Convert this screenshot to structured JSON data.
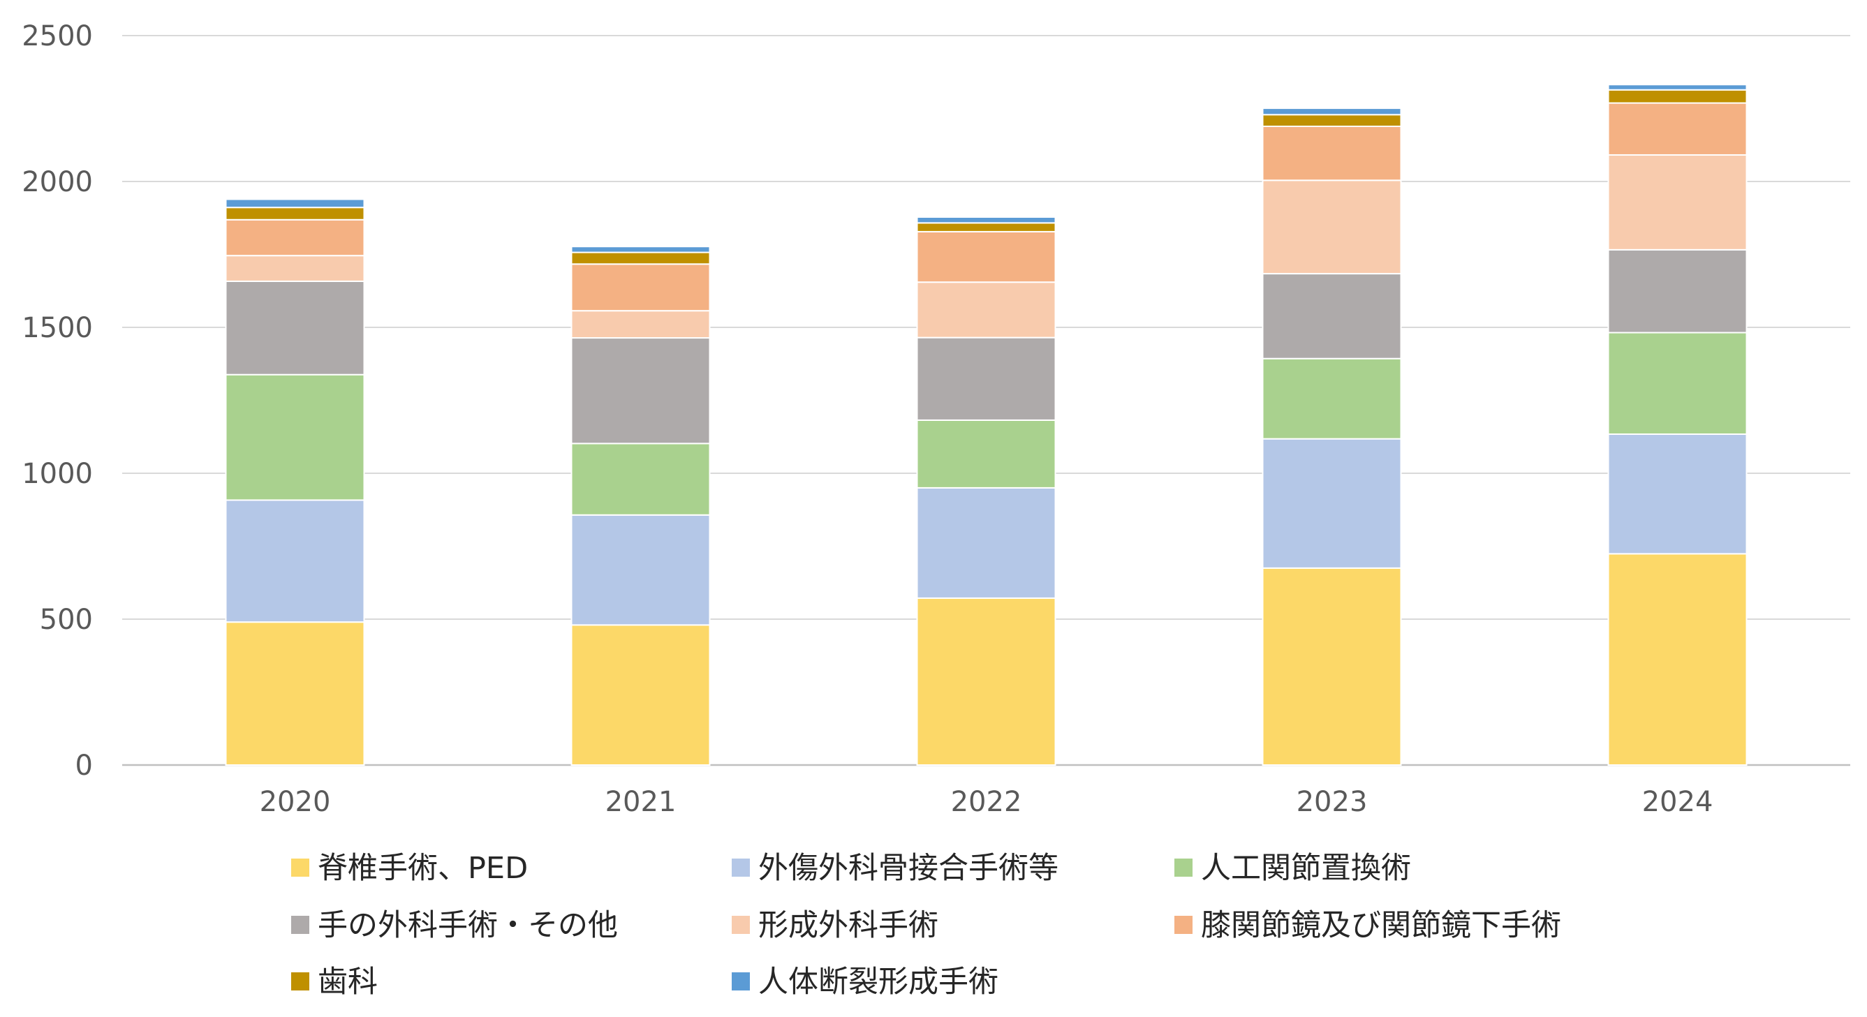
{
  "chart_data": {
    "type": "bar",
    "stacked": true,
    "categories": [
      "2020",
      "2021",
      "2022",
      "2023",
      "2024"
    ],
    "ylim": [
      0,
      2500
    ],
    "yticks": [
      0,
      500,
      1000,
      1500,
      2000,
      2500
    ],
    "grid": true,
    "legend_position": "bottom",
    "series": [
      {
        "name": "脊椎手術、PED",
        "color": "#FCD868",
        "values": [
          490,
          480,
          572,
          675,
          724
        ]
      },
      {
        "name": "外傷外科骨接合手術等",
        "color": "#B4C7E7",
        "values": [
          418,
          377,
          378,
          443,
          410
        ]
      },
      {
        "name": "人工関節置換術",
        "color": "#A9D18E",
        "values": [
          430,
          245,
          232,
          275,
          348
        ]
      },
      {
        "name": "手の外科手術・その他",
        "color": "#AEAAAA",
        "values": [
          320,
          362,
          283,
          291,
          284
        ]
      },
      {
        "name": "形成外科手術",
        "color": "#F8CBAD",
        "values": [
          88,
          93,
          190,
          320,
          325
        ]
      },
      {
        "name": "膝関節鏡及び関節鏡下手術",
        "color": "#F4B183",
        "values": [
          123,
          160,
          173,
          185,
          178
        ]
      },
      {
        "name": "歯科",
        "color": "#BF9000",
        "values": [
          42,
          40,
          30,
          40,
          45
        ]
      },
      {
        "name": "人体断裂形成手術",
        "color": "#5B9BD5",
        "values": [
          28,
          20,
          20,
          22,
          18
        ]
      }
    ]
  }
}
